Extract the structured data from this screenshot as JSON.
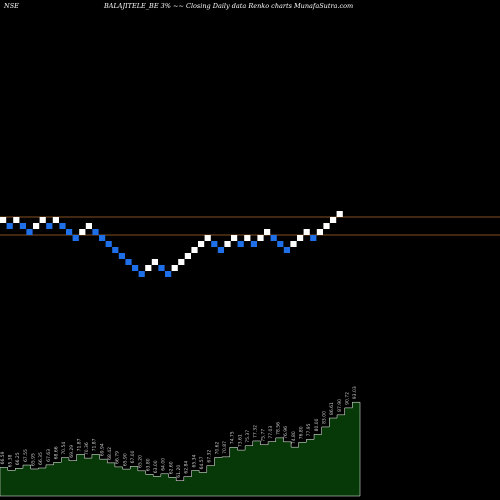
{
  "header": {
    "exchange": "NSE",
    "title": "BALAJITELE_BE 3% ~~ Closing Daily data Renko charts MunafaSutra.com"
  },
  "colors": {
    "background": "#000000",
    "up_brick": "#ffffff",
    "down_brick": "#1e6fe8",
    "ref_line": "#b06a2a",
    "area_fill": "#073807",
    "area_stroke": "#ffffff",
    "label": "#cccccc"
  },
  "chart_data": [
    {
      "type": "renko",
      "box_size_percent": 3,
      "bricks": [
        {
          "level": 0,
          "dir": "up"
        },
        {
          "level": -1,
          "dir": "down"
        },
        {
          "level": 0,
          "dir": "up"
        },
        {
          "level": -1,
          "dir": "down"
        },
        {
          "level": -2,
          "dir": "down"
        },
        {
          "level": -1,
          "dir": "up"
        },
        {
          "level": 0,
          "dir": "up"
        },
        {
          "level": -1,
          "dir": "down"
        },
        {
          "level": 0,
          "dir": "up"
        },
        {
          "level": -1,
          "dir": "down"
        },
        {
          "level": -2,
          "dir": "down"
        },
        {
          "level": -3,
          "dir": "down"
        },
        {
          "level": -2,
          "dir": "up"
        },
        {
          "level": -1,
          "dir": "up"
        },
        {
          "level": -2,
          "dir": "down"
        },
        {
          "level": -3,
          "dir": "down"
        },
        {
          "level": -4,
          "dir": "down"
        },
        {
          "level": -5,
          "dir": "down"
        },
        {
          "level": -6,
          "dir": "down"
        },
        {
          "level": -7,
          "dir": "down"
        },
        {
          "level": -8,
          "dir": "down"
        },
        {
          "level": -9,
          "dir": "down"
        },
        {
          "level": -8,
          "dir": "up"
        },
        {
          "level": -7,
          "dir": "up"
        },
        {
          "level": -8,
          "dir": "down"
        },
        {
          "level": -9,
          "dir": "down"
        },
        {
          "level": -8,
          "dir": "up"
        },
        {
          "level": -7,
          "dir": "up"
        },
        {
          "level": -6,
          "dir": "up"
        },
        {
          "level": -5,
          "dir": "up"
        },
        {
          "level": -4,
          "dir": "up"
        },
        {
          "level": -3,
          "dir": "up"
        },
        {
          "level": -4,
          "dir": "down"
        },
        {
          "level": -5,
          "dir": "down"
        },
        {
          "level": -4,
          "dir": "up"
        },
        {
          "level": -3,
          "dir": "up"
        },
        {
          "level": -4,
          "dir": "down"
        },
        {
          "level": -3,
          "dir": "up"
        },
        {
          "level": -4,
          "dir": "down"
        },
        {
          "level": -3,
          "dir": "up"
        },
        {
          "level": -2,
          "dir": "up"
        },
        {
          "level": -3,
          "dir": "down"
        },
        {
          "level": -4,
          "dir": "down"
        },
        {
          "level": -5,
          "dir": "down"
        },
        {
          "level": -4,
          "dir": "up"
        },
        {
          "level": -3,
          "dir": "up"
        },
        {
          "level": -2,
          "dir": "up"
        },
        {
          "level": -3,
          "dir": "down"
        },
        {
          "level": -2,
          "dir": "up"
        },
        {
          "level": -1,
          "dir": "up"
        },
        {
          "level": 0,
          "dir": "up"
        },
        {
          "level": 1,
          "dir": "up"
        }
      ],
      "reference_lines": [
        {
          "level": 0.5
        },
        {
          "level": -2.5
        }
      ]
    },
    {
      "type": "area",
      "labels": [
        "66.59",
        "65.38",
        "66.25",
        "67.55",
        "65.95",
        "66.35",
        "67.63",
        "68.66",
        "70.54",
        "69.29",
        "71.87",
        "70.36",
        "71.87",
        "69.94",
        "68.42",
        "66.79",
        "65.90",
        "67.00",
        "65.20",
        "63.80",
        "63.00",
        "64.00",
        "62.60",
        "61.20",
        "62.84",
        "65.34",
        "64.57",
        "67.32",
        "70.62",
        "70.87",
        "74.75",
        "73.61",
        "75.37",
        "77.32",
        "75.77",
        "77.03",
        "78.56",
        "76.96",
        "74.80",
        "76.80",
        "77.95",
        "80.00",
        "83.00",
        "86.61",
        "87.90",
        "90.72",
        "93.03"
      ],
      "values": [
        66.59,
        65.38,
        66.25,
        67.55,
        65.95,
        66.35,
        67.63,
        68.66,
        70.54,
        69.29,
        71.87,
        70.36,
        71.87,
        69.94,
        68.42,
        66.79,
        65.9,
        67.0,
        65.2,
        63.8,
        63.0,
        64.0,
        62.6,
        61.2,
        62.84,
        65.34,
        64.57,
        67.32,
        70.62,
        70.87,
        74.75,
        73.61,
        75.37,
        77.32,
        75.77,
        77.03,
        78.56,
        76.96,
        74.8,
        76.8,
        77.95,
        80.0,
        83.0,
        86.61,
        87.9,
        90.72,
        93.03
      ],
      "ylim": [
        55,
        100
      ]
    }
  ]
}
